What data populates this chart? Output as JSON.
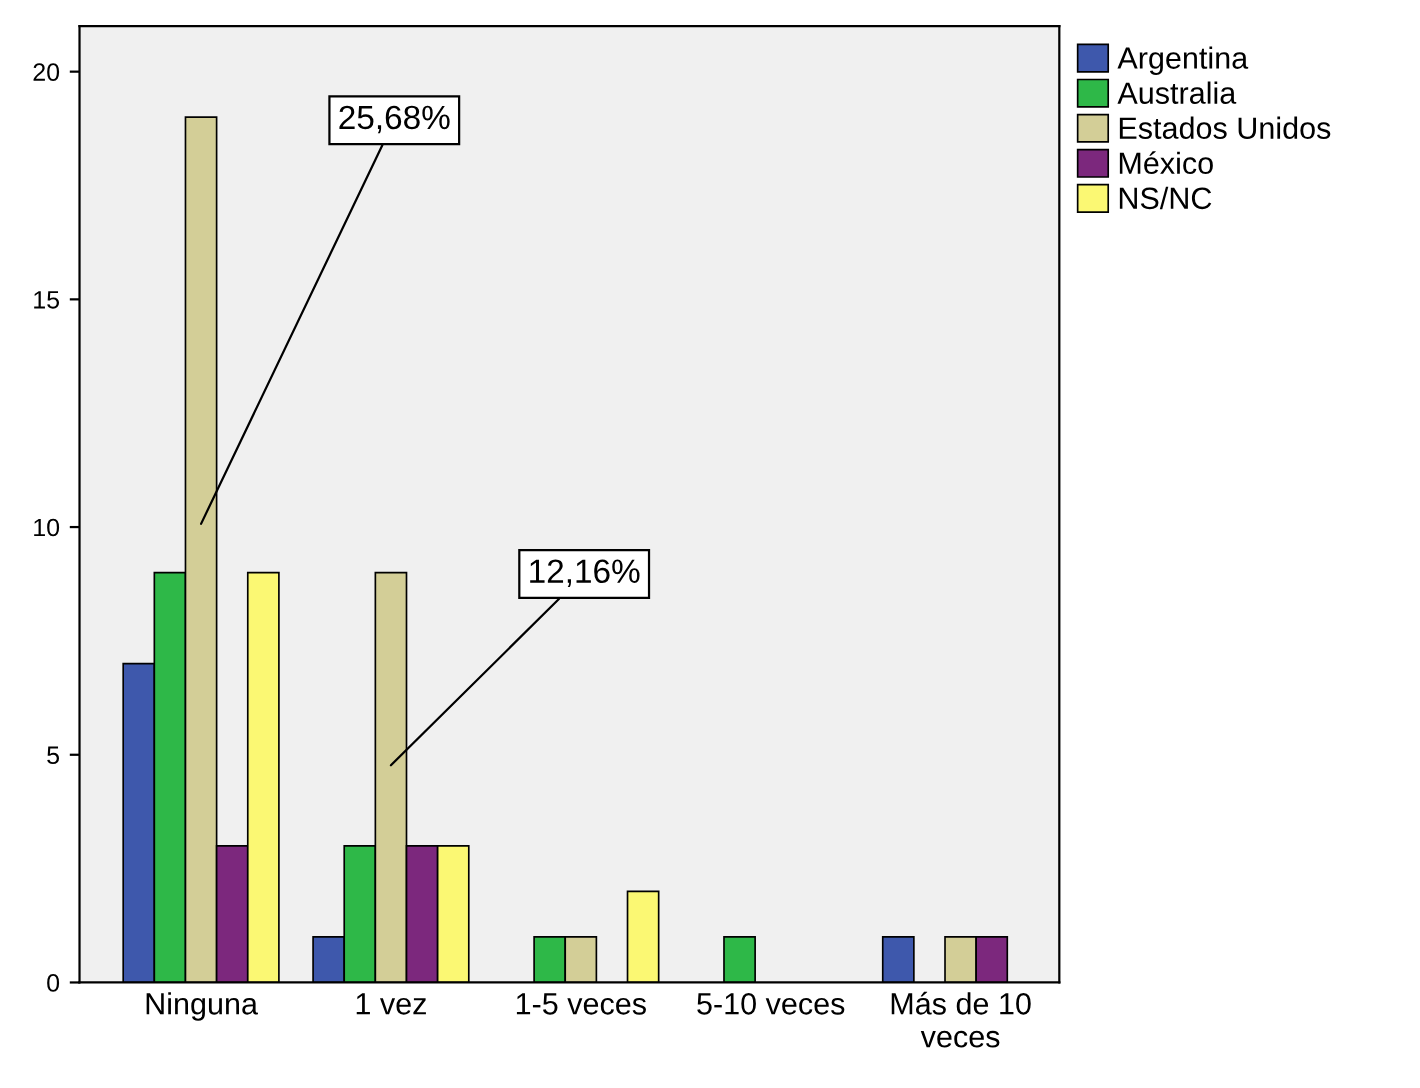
{
  "chart_data": {
    "type": "bar",
    "categories": [
      "Ninguna",
      "1 vez",
      "1-5 veces",
      "5-10 veces",
      "Más de 10\nveces"
    ],
    "series": [
      {
        "name": "Argentina",
        "color": "#3e58ac",
        "values": [
          7,
          1,
          null,
          null,
          1
        ]
      },
      {
        "name": "Australia",
        "color": "#2eb848",
        "values": [
          9,
          3,
          1,
          1,
          null
        ]
      },
      {
        "name": "Estados Unidos",
        "color": "#d3ce97",
        "values": [
          19,
          9,
          1,
          null,
          1
        ]
      },
      {
        "name": "México",
        "color": "#7c287d",
        "values": [
          3,
          3,
          null,
          null,
          1
        ]
      },
      {
        "name": "NS/NC",
        "color": "#fbf873",
        "values": [
          9,
          3,
          2,
          null,
          null
        ]
      }
    ],
    "ylim": [
      0,
      21
    ],
    "yticks": [
      0,
      5,
      10,
      15,
      20
    ],
    "grid": false,
    "legend": "top right",
    "annotations": [
      "25,68%",
      "12,16%"
    ]
  }
}
